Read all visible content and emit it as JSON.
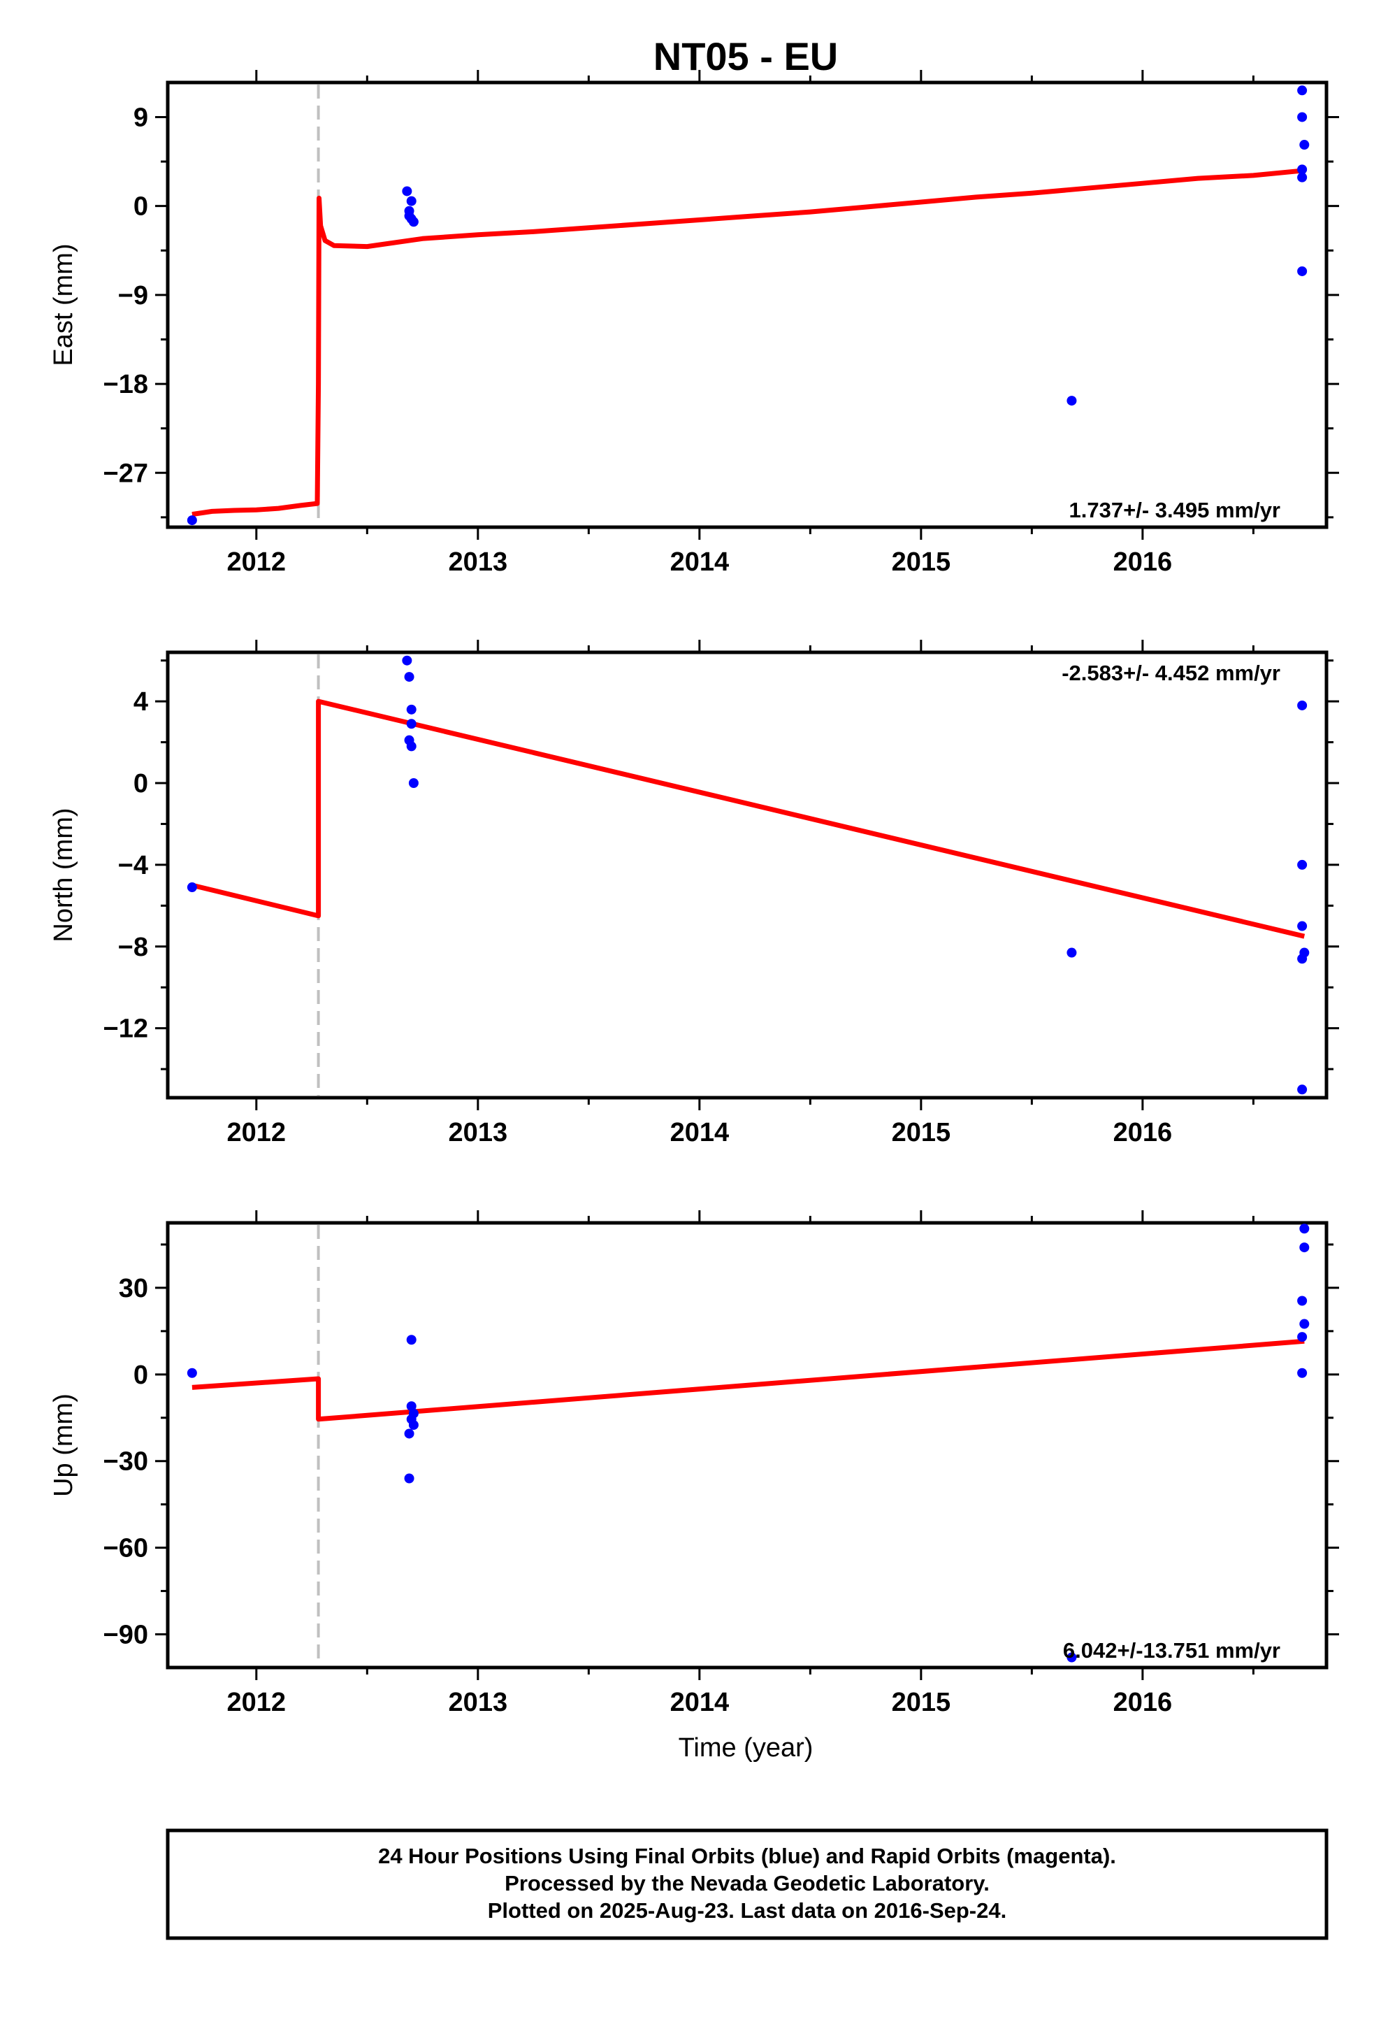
{
  "title": "NT05 - EU",
  "xlabel": "Time (year)",
  "footer": [
    "24 Hour Positions Using Final Orbits (blue) and Rapid Orbits (magenta).",
    "Processed by the Nevada Geodetic Laboratory.",
    "Plotted on 2025-Aug-23. Last data on 2016-Sep-24."
  ],
  "colors": {
    "points": "#0000ff",
    "model": "#ff0000",
    "break_line": "#c0c0c0"
  },
  "chart_data": [
    {
      "type": "scatter",
      "ylabel": "East (mm)",
      "rate_label": "1.737+/- 3.495 mm/yr",
      "rate_position": "bottom-right",
      "xlim": [
        2011.6,
        2016.83
      ],
      "ylim": [
        -32.5,
        12.5
      ],
      "x_ticks": [
        2012,
        2013,
        2014,
        2015,
        2016
      ],
      "y_ticks": [
        9,
        0,
        -9,
        -18,
        -27
      ],
      "y_tick_labels": [
        "9",
        "0",
        "−9",
        "−18",
        "−27"
      ],
      "break_x": 2012.28,
      "points": [
        [
          2011.71,
          -31.8
        ],
        [
          2012.68,
          1.5
        ],
        [
          2012.69,
          -0.5
        ],
        [
          2012.69,
          -1.0
        ],
        [
          2012.7,
          0.5
        ],
        [
          2012.7,
          -1.3
        ],
        [
          2012.71,
          -1.6
        ],
        [
          2015.68,
          -19.7
        ],
        [
          2016.72,
          11.7
        ],
        [
          2016.72,
          9.0
        ],
        [
          2016.73,
          6.2
        ],
        [
          2016.72,
          3.7
        ],
        [
          2016.72,
          2.9
        ],
        [
          2016.72,
          -6.6
        ]
      ],
      "model": [
        [
          2011.71,
          -31.2
        ],
        [
          2011.8,
          -30.9
        ],
        [
          2011.9,
          -30.8
        ],
        [
          2012.0,
          -30.75
        ],
        [
          2012.1,
          -30.6
        ],
        [
          2012.2,
          -30.3
        ],
        [
          2012.275,
          -30.1
        ],
        [
          2012.28,
          -18.0
        ],
        [
          2012.283,
          0.8
        ],
        [
          2012.29,
          -2.0
        ],
        [
          2012.31,
          -3.5
        ],
        [
          2012.35,
          -4.0
        ],
        [
          2012.5,
          -4.1
        ],
        [
          2012.75,
          -3.3
        ],
        [
          2013.0,
          -2.9
        ],
        [
          2013.25,
          -2.6
        ],
        [
          2013.5,
          -2.2
        ],
        [
          2013.75,
          -1.8
        ],
        [
          2014.0,
          -1.4
        ],
        [
          2014.25,
          -1.0
        ],
        [
          2014.5,
          -0.6
        ],
        [
          2014.75,
          -0.1
        ],
        [
          2015.0,
          0.4
        ],
        [
          2015.25,
          0.9
        ],
        [
          2015.5,
          1.3
        ],
        [
          2015.75,
          1.8
        ],
        [
          2016.0,
          2.3
        ],
        [
          2016.25,
          2.8
        ],
        [
          2016.5,
          3.1
        ],
        [
          2016.73,
          3.6
        ]
      ]
    },
    {
      "type": "scatter",
      "ylabel": "North (mm)",
      "rate_label": "-2.583+/- 4.452 mm/yr",
      "rate_position": "top-right",
      "xlim": [
        2011.6,
        2016.83
      ],
      "ylim": [
        -15.4,
        6.4
      ],
      "x_ticks": [
        2012,
        2013,
        2014,
        2015,
        2016
      ],
      "y_ticks": [
        4,
        0,
        -4,
        -8,
        -12
      ],
      "y_tick_labels": [
        "4",
        "0",
        "−4",
        "−8",
        "−12"
      ],
      "break_x": 2012.28,
      "points": [
        [
          2011.71,
          -5.1
        ],
        [
          2012.68,
          6.0
        ],
        [
          2012.69,
          5.2
        ],
        [
          2012.7,
          3.6
        ],
        [
          2012.7,
          2.9
        ],
        [
          2012.69,
          2.1
        ],
        [
          2012.7,
          1.8
        ],
        [
          2012.71,
          0.0
        ],
        [
          2015.68,
          -8.3
        ],
        [
          2016.72,
          3.8
        ],
        [
          2016.72,
          -4.0
        ],
        [
          2016.72,
          -7.0
        ],
        [
          2016.73,
          -8.3
        ],
        [
          2016.72,
          -8.6
        ],
        [
          2016.72,
          -15.0
        ]
      ],
      "model": [
        [
          2011.71,
          -5.0
        ],
        [
          2012.28,
          -6.5
        ],
        [
          2012.28,
          4.0
        ],
        [
          2016.73,
          -7.5
        ]
      ]
    },
    {
      "type": "scatter",
      "ylabel": "Up (mm)",
      "rate_label": "6.042+/-13.751 mm/yr",
      "rate_position": "bottom-right",
      "xlim": [
        2011.6,
        2016.83
      ],
      "ylim": [
        -101.5,
        52.5
      ],
      "x_ticks": [
        2012,
        2013,
        2014,
        2015,
        2016
      ],
      "y_ticks": [
        30,
        0,
        -30,
        -60,
        -90
      ],
      "y_tick_labels": [
        "30",
        "0",
        "−30",
        "−60",
        "−90"
      ],
      "break_x": 2012.28,
      "points": [
        [
          2011.71,
          0.5
        ],
        [
          2012.7,
          12.0
        ],
        [
          2012.7,
          -11.0
        ],
        [
          2012.71,
          -13.5
        ],
        [
          2012.7,
          -15.5
        ],
        [
          2012.71,
          -17.5
        ],
        [
          2012.69,
          -20.5
        ],
        [
          2012.69,
          -36.0
        ],
        [
          2015.68,
          -98.0
        ],
        [
          2016.73,
          50.5
        ],
        [
          2016.73,
          44.0
        ],
        [
          2016.72,
          25.5
        ],
        [
          2016.73,
          17.5
        ],
        [
          2016.72,
          13.0
        ],
        [
          2016.72,
          0.5
        ]
      ],
      "model": [
        [
          2011.71,
          -4.5
        ],
        [
          2012.28,
          -1.5
        ],
        [
          2012.28,
          -15.5
        ],
        [
          2016.73,
          11.5
        ]
      ]
    }
  ]
}
